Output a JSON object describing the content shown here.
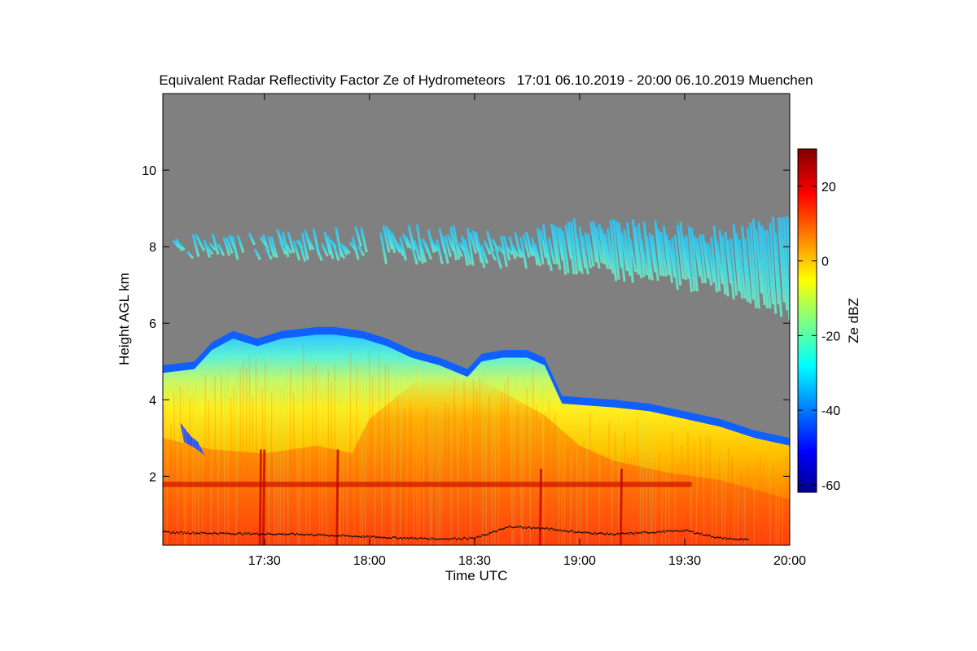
{
  "chart_data": {
    "type": "heatmap",
    "title": "Equivalent Radar Reflectivity Factor Ze of Hydrometeors   17:01 06.10.2019 - 20:00 06.10.2019 Muenchen",
    "xlabel": "Time UTC",
    "ylabel": "Height AGL km",
    "x_range_minutes_utc": [
      1021,
      1200
    ],
    "x_ticks": [
      {
        "label": "17:30",
        "value": 1050
      },
      {
        "label": "18:00",
        "value": 1080
      },
      {
        "label": "18:30",
        "value": 1110
      },
      {
        "label": "19:00",
        "value": 1140
      },
      {
        "label": "19:30",
        "value": 1170
      },
      {
        "label": "20:00",
        "value": 1200
      }
    ],
    "ylim": [
      0.2,
      12.0
    ],
    "y_ticks": [
      2,
      4,
      6,
      8,
      10
    ],
    "grid": false,
    "colorbar": {
      "label": "Ze dBZ",
      "range": [
        -62,
        30
      ],
      "ticks": [
        -60,
        -40,
        -20,
        0,
        20
      ],
      "colormap": "jet"
    },
    "no_signal_color": "#808080",
    "cloud_top_km": [
      [
        1021,
        4.9
      ],
      [
        1030,
        5.0
      ],
      [
        1035,
        5.5
      ],
      [
        1041,
        5.8
      ],
      [
        1048,
        5.6
      ],
      [
        1055,
        5.8
      ],
      [
        1065,
        5.9
      ],
      [
        1070,
        5.9
      ],
      [
        1078,
        5.8
      ],
      [
        1085,
        5.6
      ],
      [
        1092,
        5.3
      ],
      [
        1100,
        5.1
      ],
      [
        1108,
        4.8
      ],
      [
        1112,
        5.2
      ],
      [
        1118,
        5.3
      ],
      [
        1125,
        5.3
      ],
      [
        1130,
        5.1
      ],
      [
        1135,
        4.1
      ],
      [
        1150,
        4.0
      ],
      [
        1160,
        3.9
      ],
      [
        1170,
        3.7
      ],
      [
        1180,
        3.5
      ],
      [
        1190,
        3.2
      ],
      [
        1200,
        3.0
      ]
    ],
    "upper_cloud_layer": {
      "base_km": [
        [
          1024,
          7.7
        ],
        [
          1060,
          7.6
        ],
        [
          1100,
          7.5
        ],
        [
          1120,
          7.4
        ],
        [
          1140,
          7.2
        ],
        [
          1160,
          6.9
        ],
        [
          1180,
          6.7
        ],
        [
          1200,
          6.0
        ]
      ],
      "top_km": [
        [
          1024,
          8.3
        ],
        [
          1060,
          8.5
        ],
        [
          1100,
          8.6
        ],
        [
          1120,
          8.4
        ],
        [
          1140,
          8.8
        ],
        [
          1160,
          8.7
        ],
        [
          1180,
          8.6
        ],
        [
          1200,
          8.9
        ]
      ]
    },
    "bright_band_km": 1.8,
    "cloud_base_km": [
      [
        1021,
        0.55
      ],
      [
        1040,
        0.52
      ],
      [
        1060,
        0.5
      ],
      [
        1075,
        0.45
      ],
      [
        1090,
        0.4
      ],
      [
        1100,
        0.38
      ],
      [
        1110,
        0.4
      ],
      [
        1115,
        0.55
      ],
      [
        1120,
        0.7
      ],
      [
        1130,
        0.65
      ],
      [
        1140,
        0.55
      ],
      [
        1150,
        0.5
      ],
      [
        1160,
        0.55
      ],
      [
        1170,
        0.6
      ],
      [
        1180,
        0.4
      ],
      [
        1188,
        0.35
      ]
    ]
  }
}
